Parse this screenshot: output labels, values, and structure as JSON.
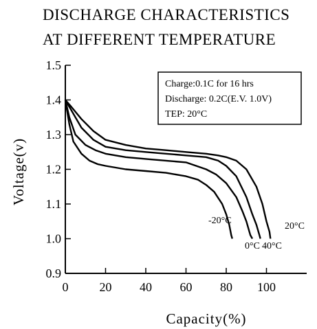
{
  "chart_data": {
    "type": "line",
    "title_lines": [
      "DISCHARGE CHARACTERISTICS",
      "AT DIFFERENT TEMPERATURE"
    ],
    "xlabel": "Capacity(%)",
    "ylabel": "Voltage(v)",
    "xlim": [
      0,
      120
    ],
    "ylim": [
      0.9,
      1.5
    ],
    "xticks": [
      0,
      20,
      40,
      60,
      80,
      100
    ],
    "xtick_labels": [
      "0",
      "20",
      "40",
      "60",
      "80",
      "100"
    ],
    "yticks": [
      0.9,
      1.0,
      1.1,
      1.2,
      1.3,
      1.4,
      1.5
    ],
    "ytick_labels": [
      "0.9",
      "1.0",
      "1.1",
      "1.2",
      "1.3",
      "1.4",
      "1.5"
    ],
    "grid": false,
    "annotation": [
      "Charge:0.1C for 16 hrs",
      "Discharge: 0.2C(E.V. 1.0V)",
      "TEP: 20°C"
    ],
    "series": [
      {
        "name": "20°C",
        "x": [
          0,
          3,
          8,
          14,
          20,
          30,
          40,
          50,
          60,
          70,
          76,
          80,
          85,
          90,
          95,
          98,
          100,
          101.5,
          102
        ],
        "y": [
          1.4,
          1.38,
          1.345,
          1.31,
          1.285,
          1.27,
          1.26,
          1.255,
          1.25,
          1.245,
          1.24,
          1.235,
          1.225,
          1.2,
          1.15,
          1.1,
          1.05,
          1.02,
          1.0
        ]
      },
      {
        "name": "40°C",
        "x": [
          0,
          3,
          8,
          14,
          20,
          30,
          40,
          50,
          60,
          70,
          76,
          80,
          85,
          90,
          93,
          95,
          96.5,
          97
        ],
        "y": [
          1.4,
          1.37,
          1.32,
          1.285,
          1.265,
          1.255,
          1.25,
          1.245,
          1.24,
          1.235,
          1.225,
          1.21,
          1.18,
          1.12,
          1.07,
          1.04,
          1.01,
          1.0
        ]
      },
      {
        "name": "0°C",
        "x": [
          0,
          2,
          5,
          10,
          15,
          20,
          30,
          40,
          50,
          60,
          70,
          75,
          80,
          85,
          88,
          90,
          92,
          93
        ],
        "y": [
          1.4,
          1.35,
          1.3,
          1.27,
          1.255,
          1.245,
          1.235,
          1.23,
          1.225,
          1.22,
          1.2,
          1.185,
          1.16,
          1.12,
          1.08,
          1.05,
          1.01,
          1.0
        ]
      },
      {
        "name": "-20°C",
        "x": [
          0,
          2,
          4,
          8,
          12,
          16,
          20,
          30,
          40,
          50,
          60,
          66,
          70,
          74,
          78,
          80,
          81.5,
          82.5,
          83
        ],
        "y": [
          1.4,
          1.33,
          1.28,
          1.245,
          1.225,
          1.215,
          1.21,
          1.2,
          1.195,
          1.19,
          1.18,
          1.17,
          1.155,
          1.135,
          1.1,
          1.07,
          1.04,
          1.01,
          1.0
        ]
      }
    ]
  }
}
